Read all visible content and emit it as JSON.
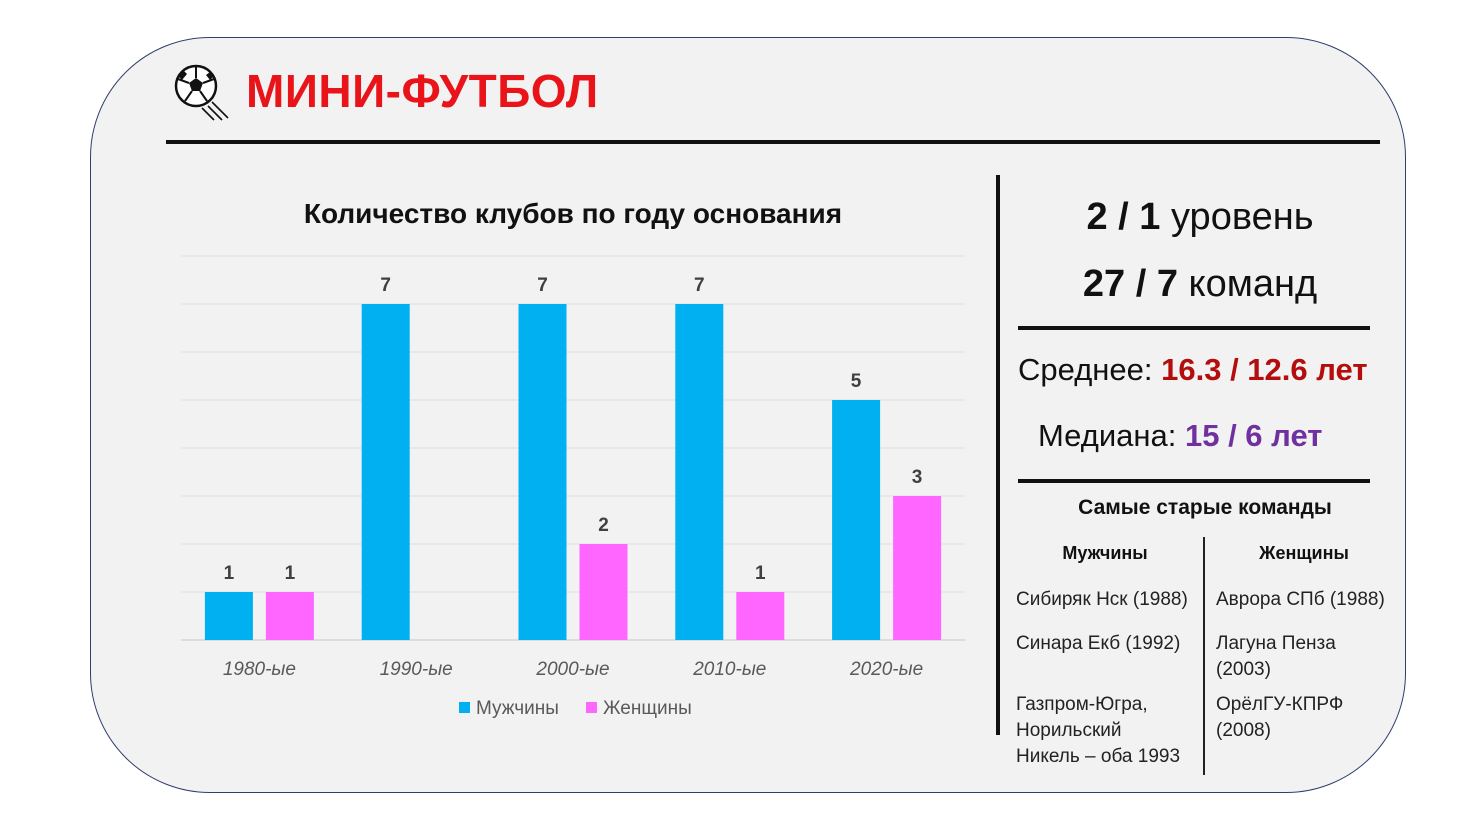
{
  "header": {
    "title": "МИНИ-ФУТБОЛ",
    "icon": "soccer-ball-icon"
  },
  "colors": {
    "men": "#00b0f0",
    "women": "#ff66ff",
    "title": "#e8141a",
    "average": "#b30d0d",
    "median": "#7030a0"
  },
  "chart_data": {
    "type": "bar",
    "title": "Количество клубов по году основания",
    "categories": [
      "1980-ые",
      "1990-ые",
      "2000-ые",
      "2010-ые",
      "2020-ые"
    ],
    "series": [
      {
        "name": "Мужчины",
        "values": [
          1,
          7,
          7,
          7,
          5
        ]
      },
      {
        "name": "Женщины",
        "values": [
          1,
          0,
          2,
          1,
          3
        ]
      }
    ],
    "data_labels": true,
    "ylim": [
      0,
      8
    ],
    "grid": true,
    "legend": "bottom"
  },
  "stats": {
    "level_value": "2 / 1",
    "level_label": "уровень",
    "teams_value": "27 / 7",
    "teams_label": "команд",
    "average_label": "Среднее:",
    "average_value": "16.3 / 12.6 лет",
    "median_label": "Медиана:",
    "median_value": "15 / 6 лет"
  },
  "oldest": {
    "title": "Самые старые команды",
    "men_header": "Мужчины",
    "women_header": "Женщины",
    "men": [
      [
        "Сибиряк Нск (1988)"
      ],
      [
        "Синара Екб (1992)"
      ],
      [
        "Газпром-Югра,",
        "Норильский",
        "Никель – оба 1993"
      ]
    ],
    "women": [
      [
        "Аврора СПб (1988)"
      ],
      [
        "Лагуна Пенза",
        "(2003)"
      ],
      [
        "ОрёлГУ-КПРФ",
        "(2008)"
      ]
    ]
  }
}
